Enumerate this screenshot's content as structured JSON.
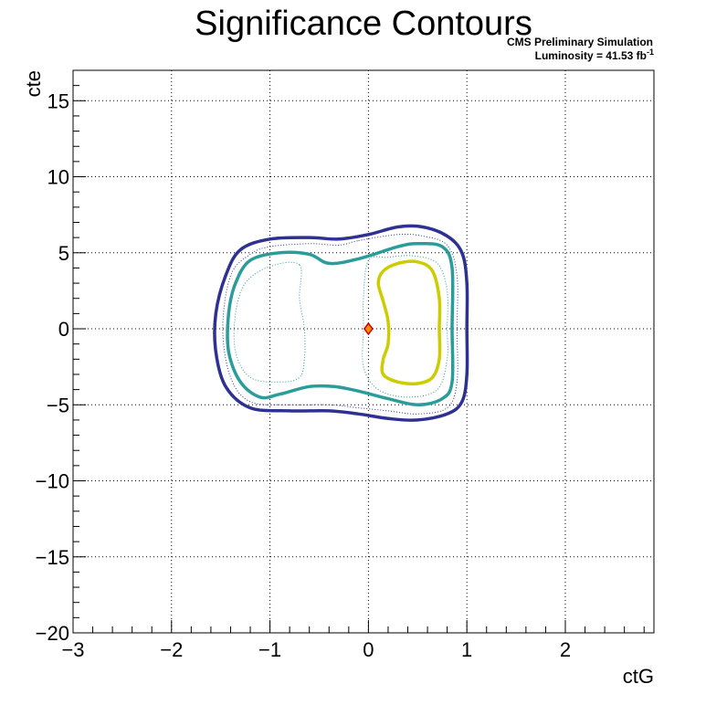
{
  "chart_data": {
    "type": "contour",
    "title": "Significance Contours",
    "header_line1": "CMS Preliminary Simulation",
    "header_line2": "Luminosity = 41.53 fb",
    "header_line2_sup": "-1",
    "xlabel": "ctG",
    "ylabel": "cte",
    "xlim": [
      -3,
      2.9
    ],
    "ylim": [
      -20,
      17
    ],
    "grid": true,
    "x_ticks": [
      -3,
      -2,
      -1,
      0,
      1,
      2
    ],
    "x_tick_labels": [
      "−3",
      "−2",
      "−1",
      "0",
      "1",
      "2"
    ],
    "y_ticks": [
      -20,
      -15,
      -10,
      -5,
      0,
      5,
      10,
      15
    ],
    "y_tick_labels": [
      "−20",
      "−15",
      "−10",
      "−5",
      "0",
      "5",
      "10",
      "15"
    ],
    "best_fit_point": {
      "x": 0.0,
      "y": 0.0,
      "color": "#ff8c00",
      "edge_color": "#cc0000"
    },
    "contours": [
      {
        "style": "solid",
        "color": "#2e3192",
        "width": 3.5,
        "points": [
          [
            0.0,
            6.2
          ],
          [
            0.3,
            6.7
          ],
          [
            0.55,
            6.7
          ],
          [
            0.8,
            6.1
          ],
          [
            0.95,
            5.0
          ],
          [
            1.0,
            3.0
          ],
          [
            1.0,
            0
          ],
          [
            1.0,
            -3.0
          ],
          [
            0.95,
            -4.8
          ],
          [
            0.8,
            -5.6
          ],
          [
            0.5,
            -6.0
          ],
          [
            0.2,
            -5.9
          ],
          [
            -0.1,
            -5.6
          ],
          [
            -0.4,
            -5.4
          ],
          [
            -0.8,
            -5.4
          ],
          [
            -1.2,
            -5.2
          ],
          [
            -1.45,
            -3.8
          ],
          [
            -1.55,
            -1.5
          ],
          [
            -1.55,
            1.0
          ],
          [
            -1.45,
            3.5
          ],
          [
            -1.3,
            5.2
          ],
          [
            -1.0,
            5.9
          ],
          [
            -0.6,
            6.0
          ],
          [
            -0.3,
            5.9
          ]
        ]
      },
      {
        "style": "dotted",
        "color": "#2e3192",
        "width": 1,
        "points": [
          [
            -0.1,
            5.8
          ],
          [
            0.3,
            6.2
          ],
          [
            0.55,
            6.1
          ],
          [
            0.8,
            5.5
          ],
          [
            0.9,
            3.5
          ],
          [
            0.9,
            0
          ],
          [
            0.9,
            -3.5
          ],
          [
            0.8,
            -5.2
          ],
          [
            0.5,
            -5.6
          ],
          [
            0.2,
            -5.4
          ],
          [
            -0.1,
            -5.2
          ],
          [
            -0.4,
            -5.0
          ],
          [
            -0.8,
            -5.0
          ],
          [
            -1.2,
            -4.8
          ],
          [
            -1.4,
            -3.2
          ],
          [
            -1.48,
            0
          ],
          [
            -1.4,
            3.5
          ],
          [
            -1.2,
            4.9
          ],
          [
            -1.0,
            5.4
          ],
          [
            -0.6,
            5.6
          ],
          [
            -0.3,
            5.5
          ]
        ]
      },
      {
        "style": "solid",
        "color": "#2a9d9a",
        "width": 3.5,
        "points": [
          [
            -0.1,
            4.6
          ],
          [
            0.3,
            5.4
          ],
          [
            0.5,
            5.6
          ],
          [
            0.75,
            5.4
          ],
          [
            0.85,
            4.0
          ],
          [
            0.85,
            0
          ],
          [
            0.85,
            -3.5
          ],
          [
            0.75,
            -4.6
          ],
          [
            0.5,
            -5.0
          ],
          [
            0.2,
            -4.6
          ],
          [
            -0.1,
            -4.1
          ],
          [
            -0.35,
            -3.8
          ],
          [
            -0.6,
            -3.8
          ],
          [
            -0.9,
            -4.3
          ],
          [
            -1.1,
            -4.5
          ],
          [
            -1.3,
            -3.5
          ],
          [
            -1.42,
            -1.5
          ],
          [
            -1.42,
            1.0
          ],
          [
            -1.35,
            3.0
          ],
          [
            -1.2,
            4.5
          ],
          [
            -0.9,
            5.0
          ],
          [
            -0.6,
            4.9
          ],
          [
            -0.4,
            4.3
          ]
        ]
      },
      {
        "style": "dotted",
        "color": "#2a9d9a",
        "width": 1,
        "points": [
          [
            -0.7,
            4.2
          ],
          [
            -0.7,
            2.0
          ],
          [
            -0.65,
            0
          ],
          [
            -0.65,
            -2.0
          ],
          [
            -0.7,
            -3.2
          ],
          [
            -0.9,
            -3.5
          ],
          [
            -1.2,
            -3.2
          ],
          [
            -1.35,
            -1.5
          ],
          [
            -1.35,
            1.0
          ],
          [
            -1.25,
            3.0
          ],
          [
            -1.0,
            4.1
          ]
        ]
      },
      {
        "style": "dotted",
        "color": "#2a9d9a",
        "width": 1,
        "points": [
          [
            0.0,
            4.5
          ],
          [
            -0.05,
            2.0
          ],
          [
            -0.05,
            0
          ],
          [
            -0.05,
            -2.5
          ],
          [
            0.1,
            -4.0
          ],
          [
            0.4,
            -4.5
          ],
          [
            0.7,
            -4.0
          ],
          [
            0.8,
            -2.0
          ],
          [
            0.8,
            0
          ],
          [
            0.8,
            2.5
          ],
          [
            0.7,
            4.3
          ],
          [
            0.45,
            4.8
          ],
          [
            0.2,
            4.7
          ]
        ]
      },
      {
        "style": "solid",
        "color": "#cccc00",
        "width": 3.5,
        "points": [
          [
            0.15,
            3.8
          ],
          [
            0.3,
            4.3
          ],
          [
            0.5,
            4.4
          ],
          [
            0.65,
            3.8
          ],
          [
            0.72,
            2.0
          ],
          [
            0.72,
            0
          ],
          [
            0.72,
            -2.0
          ],
          [
            0.65,
            -3.2
          ],
          [
            0.5,
            -3.6
          ],
          [
            0.3,
            -3.5
          ],
          [
            0.15,
            -3.0
          ],
          [
            0.15,
            -2.0
          ],
          [
            0.2,
            -1.0
          ],
          [
            0.2,
            0.5
          ],
          [
            0.15,
            1.8
          ],
          [
            0.1,
            3.0
          ]
        ]
      }
    ]
  }
}
